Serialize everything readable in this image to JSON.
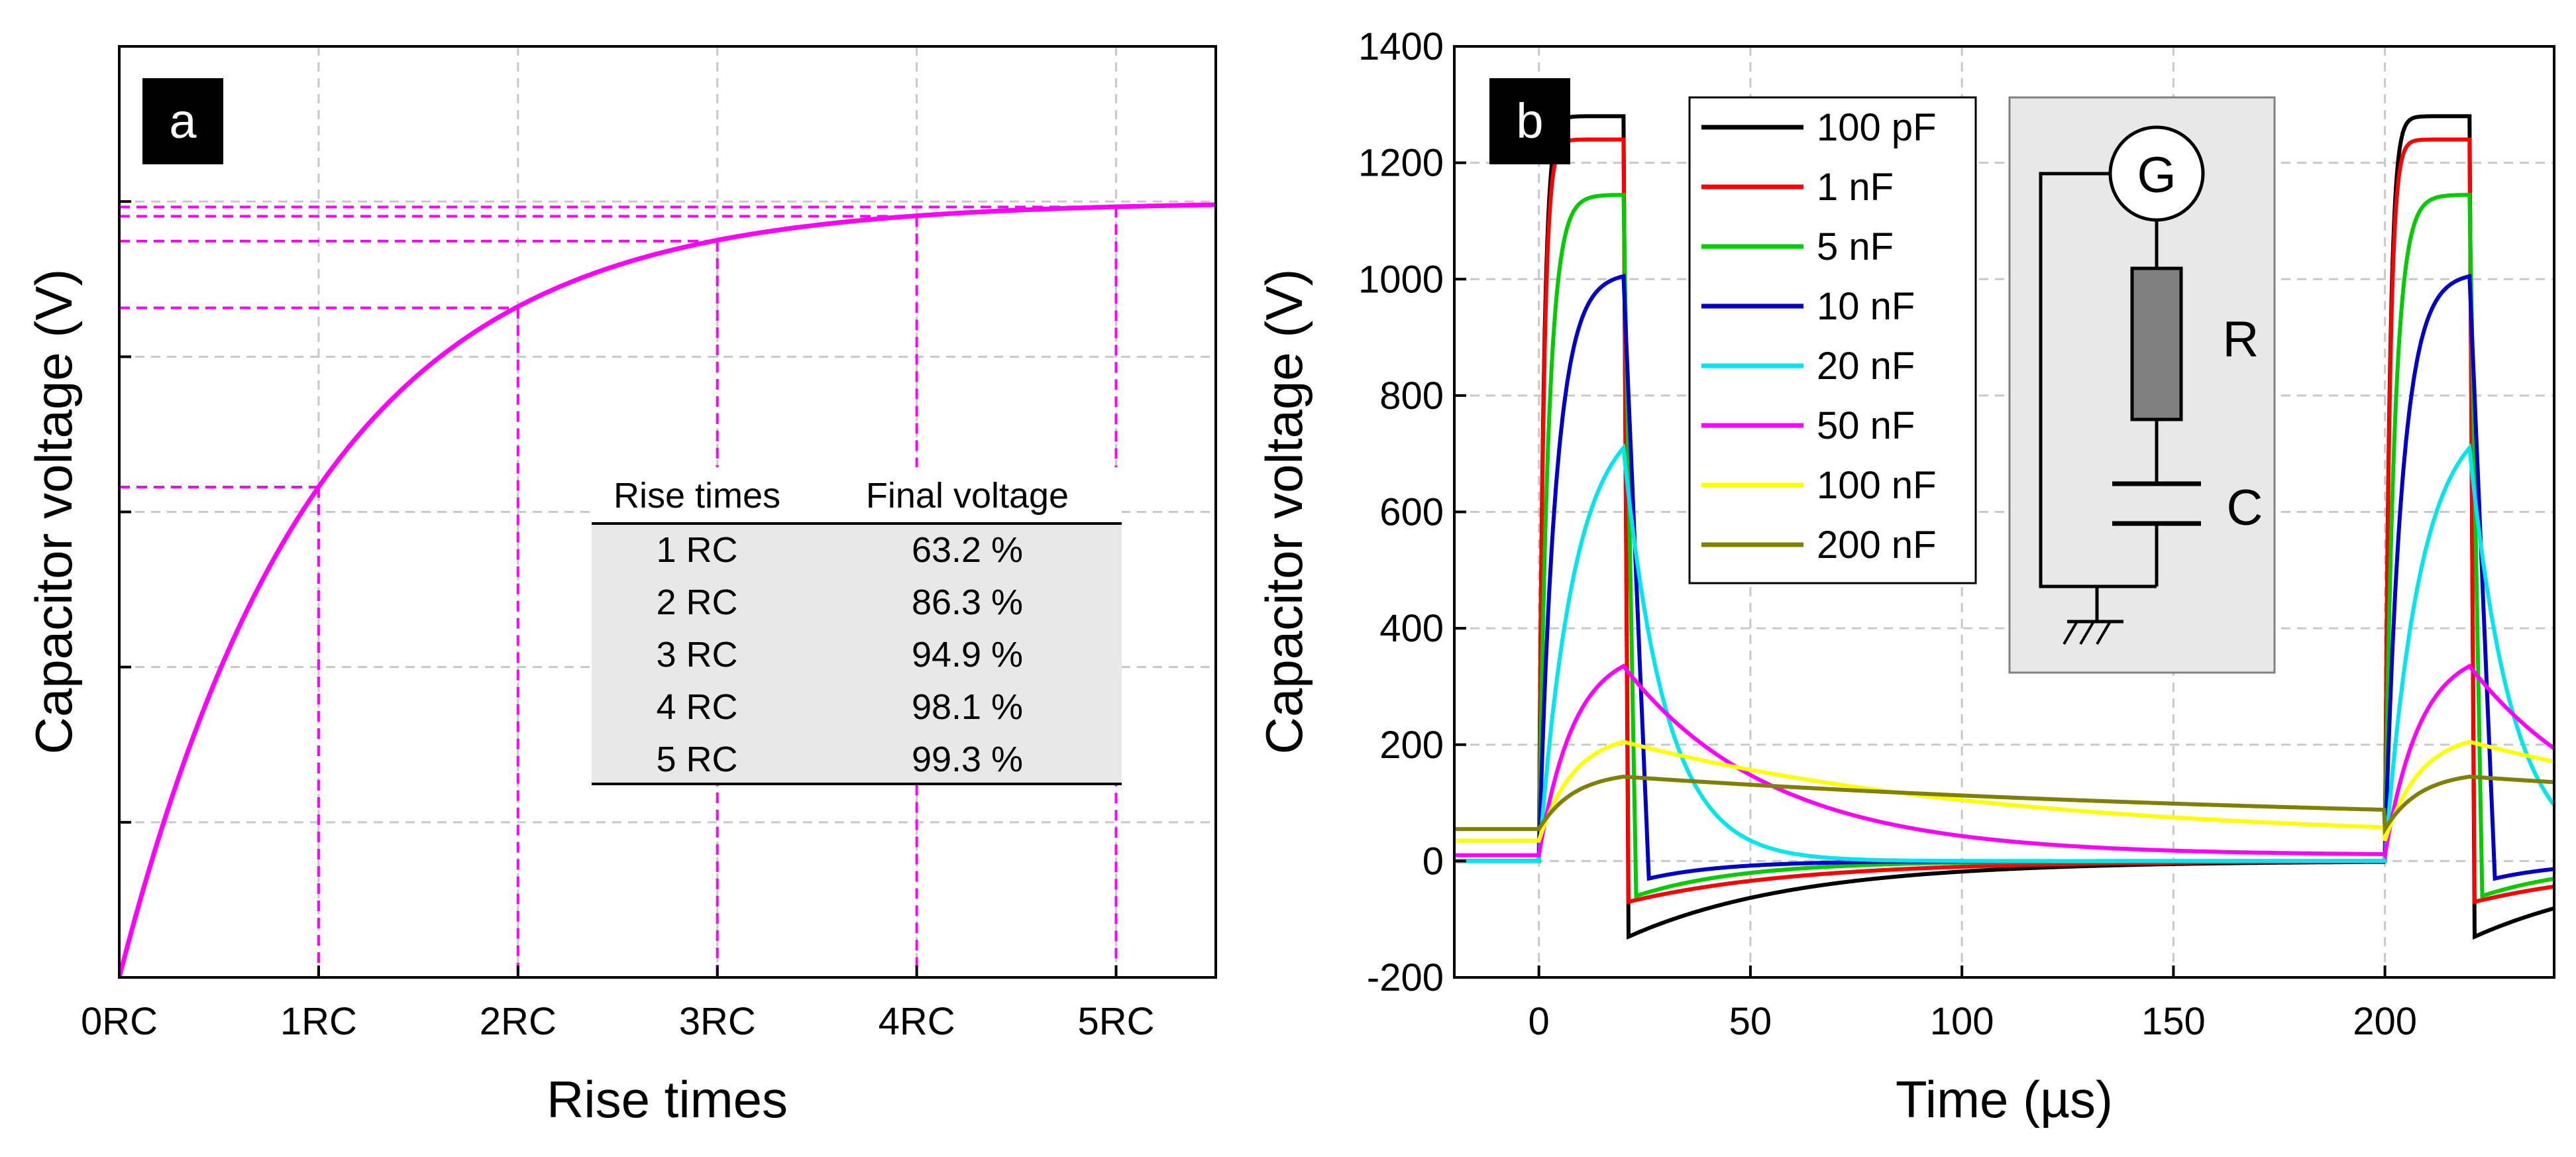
{
  "chart_data": [
    {
      "type": "line",
      "panel": "a",
      "xlabel": "Rise times",
      "ylabel": "Capacitor voltage (V)",
      "x_ticks": [
        "0RC",
        "1RC",
        "2RC",
        "3RC",
        "4RC",
        "5RC"
      ],
      "xlim": [
        0,
        5.5
      ],
      "ylim": [
        0,
        1.2
      ],
      "color": "#ff00ff",
      "series": [
        {
          "name": "1 - exp(-t/RC)",
          "function": "1 - exp(-x)",
          "x_range": [
            0,
            5.5
          ]
        }
      ],
      "guides": [
        {
          "x": 1,
          "y": 0.632
        },
        {
          "x": 2,
          "y": 0.863
        },
        {
          "x": 3,
          "y": 0.949
        },
        {
          "x": 4,
          "y": 0.981
        },
        {
          "x": 5,
          "y": 0.993
        }
      ],
      "table": {
        "headers": [
          "Rise times",
          "Final voltage"
        ],
        "rows": [
          [
            "1 RC",
            "63.2 %"
          ],
          [
            "2 RC",
            "86.3 %"
          ],
          [
            "3 RC",
            "94.9 %"
          ],
          [
            "4 RC",
            "98.1 %"
          ],
          [
            "5 RC",
            "99.3 %"
          ]
        ]
      }
    },
    {
      "type": "line",
      "panel": "b",
      "xlabel": "Time (µs)",
      "ylabel": "Capacitor voltage (V)",
      "xlim": [
        -20,
        240
      ],
      "ylim": [
        -200,
        1400
      ],
      "x_ticks": [
        "0",
        "50",
        "100",
        "150",
        "200"
      ],
      "x_tick_values": [
        0,
        50,
        100,
        150,
        200
      ],
      "y_ticks": [
        "-200",
        "0",
        "200",
        "400",
        "600",
        "800",
        "1000",
        "1200",
        "1400"
      ],
      "y_tick_values": [
        -200,
        0,
        200,
        400,
        600,
        800,
        1000,
        1200,
        1400
      ],
      "pulse": {
        "period": 200,
        "on_duration": 20
      },
      "series": [
        {
          "name": "100 pF",
          "color": "#000000",
          "peak": 1280,
          "baseline": 0,
          "undershoot": -130
        },
        {
          "name": "1 nF",
          "color": "#ff0000",
          "peak": 1240,
          "baseline": 0,
          "undershoot": -70
        },
        {
          "name": "5 nF",
          "color": "#00cc00",
          "peak": 1145,
          "baseline": 0,
          "undershoot": -60
        },
        {
          "name": "10 nF",
          "color": "#0000cc",
          "peak": 1005,
          "baseline": 0,
          "undershoot": -30
        },
        {
          "name": "20 nF",
          "color": "#00e5ee",
          "peak": 710,
          "baseline": 0,
          "undershoot": 0
        },
        {
          "name": "50 nF",
          "color": "#ff00ff",
          "peak": 335,
          "baseline": 10,
          "undershoot": 0
        },
        {
          "name": "100 nF",
          "color": "#ffff00",
          "peak": 205,
          "baseline": 35,
          "undershoot": 0
        },
        {
          "name": "200 nF",
          "color": "#808000",
          "peak": 145,
          "baseline": 55,
          "undershoot": 0
        }
      ],
      "inset_circuit": {
        "labels": [
          "G",
          "R",
          "C"
        ]
      }
    }
  ]
}
